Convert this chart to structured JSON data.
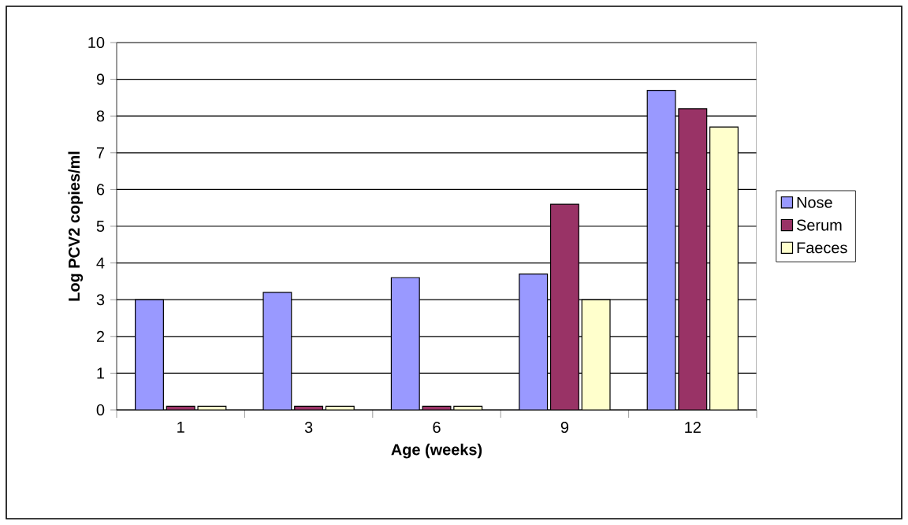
{
  "chart_data": {
    "type": "bar",
    "xlabel": "Age (weeks)",
    "ylabel": "Log PCV2 copies/ml",
    "categories": [
      "1",
      "3",
      "6",
      "9",
      "12"
    ],
    "series": [
      {
        "name": "Nose",
        "color": "#9999ff",
        "values": [
          3.0,
          3.2,
          3.6,
          3.7,
          8.7
        ]
      },
      {
        "name": "Serum",
        "color": "#993366",
        "values": [
          0.1,
          0.1,
          0.1,
          5.6,
          8.2
        ]
      },
      {
        "name": "Faeces",
        "color": "#ffffcc",
        "values": [
          0.1,
          0.1,
          0.1,
          3.0,
          7.7
        ]
      }
    ],
    "ylim": [
      0,
      10
    ],
    "yticks": [
      0,
      1,
      2,
      3,
      4,
      5,
      6,
      7,
      8,
      9,
      10
    ],
    "grid": "y",
    "legend": "right"
  }
}
